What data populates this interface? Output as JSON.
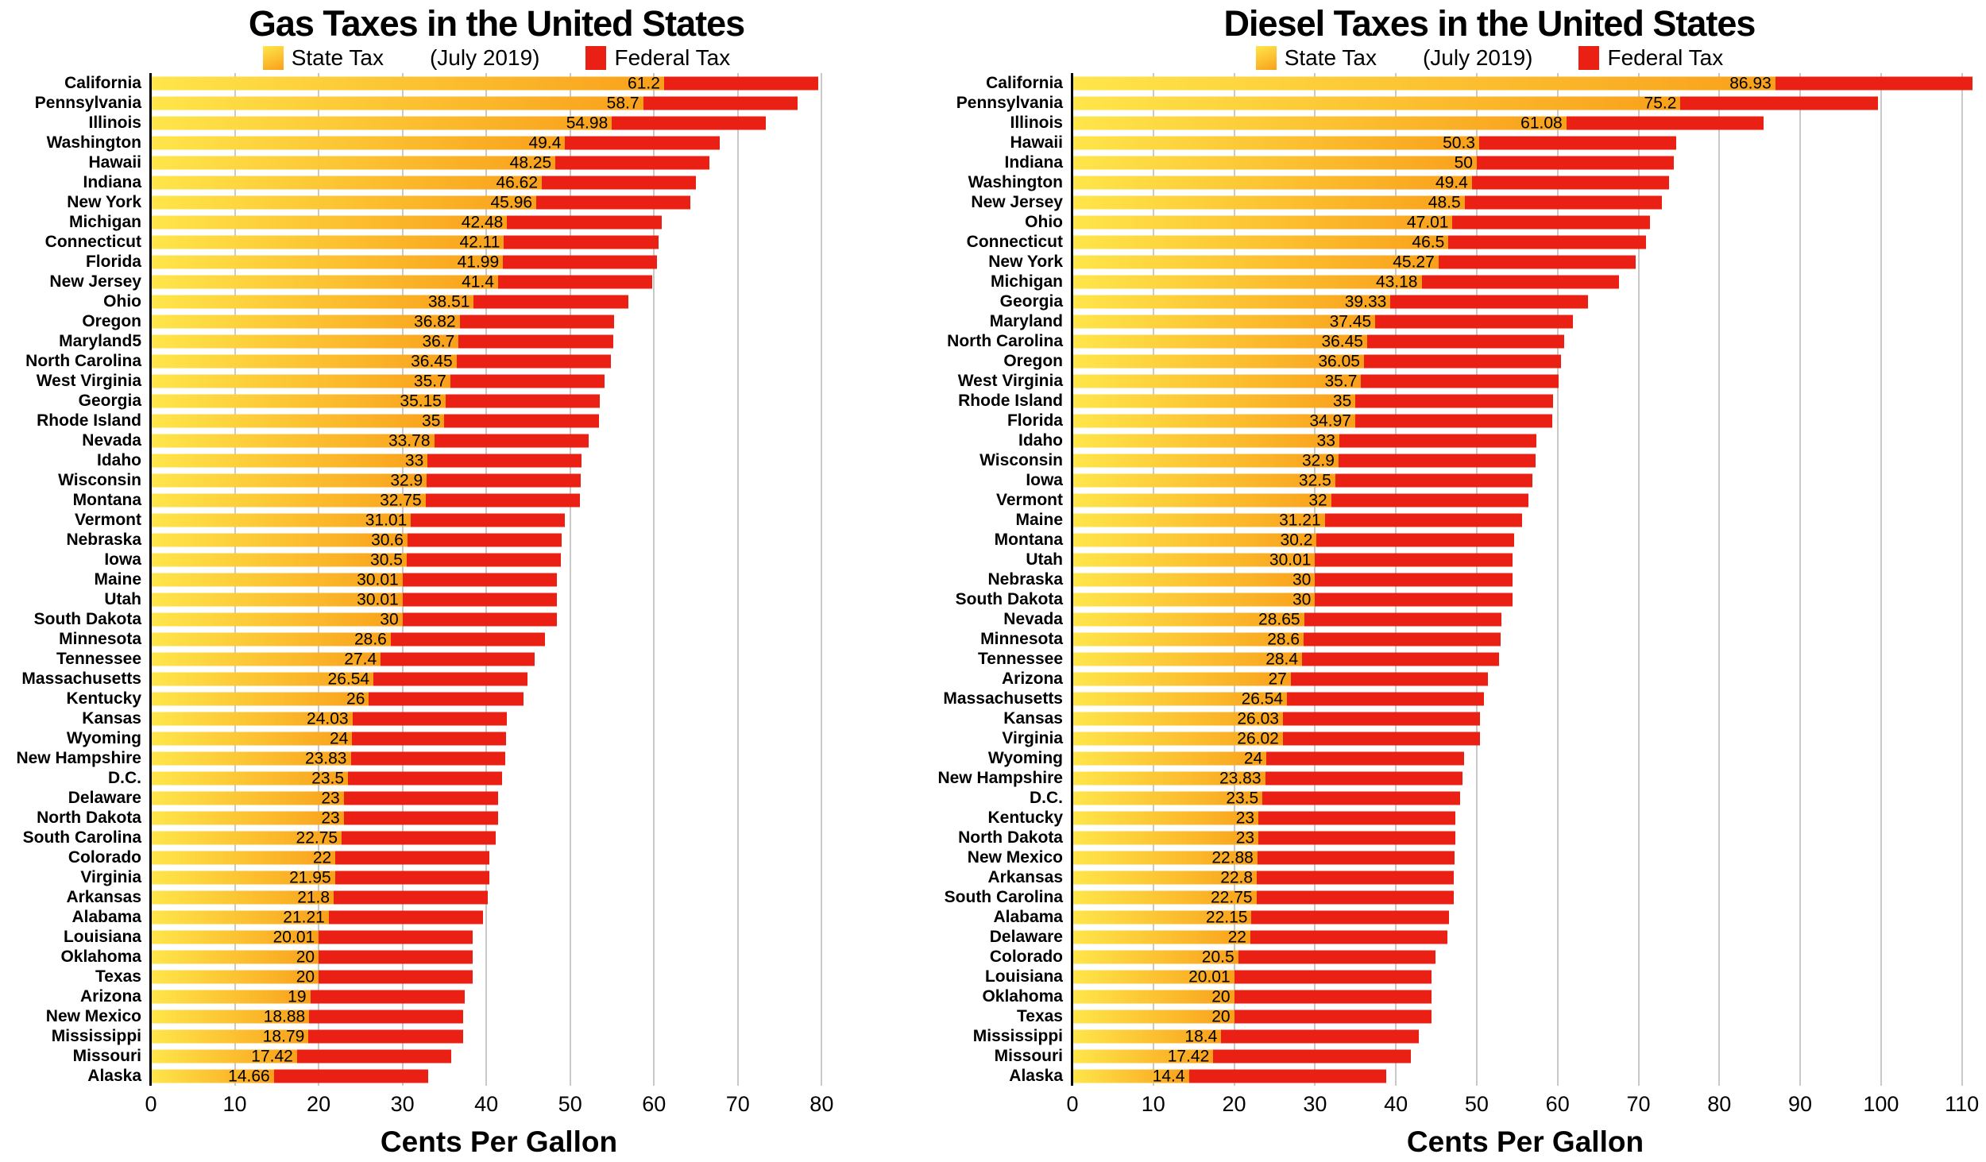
{
  "colors": {
    "state_tax_gradient_start": "#FFE64A",
    "state_tax_gradient_end": "#F9A01B",
    "federal_tax": "#EB2014",
    "gridline": "#C9C9C9",
    "axis": "#000000",
    "text": "#000000",
    "background": "#FFFFFF"
  },
  "chart_data": [
    {
      "type": "bar",
      "orientation": "horizontal",
      "title": "Gas Taxes in the United States",
      "subtitle": "(July 2019)",
      "legend_position": "top",
      "xlabel": "Cents Per Gallon",
      "xlim": [
        0,
        83
      ],
      "xticks": [
        0,
        10,
        20,
        30,
        40,
        50,
        60,
        70,
        80
      ],
      "grid": true,
      "categories": [
        "California",
        "Pennsylvania",
        "Illinois",
        "Washington",
        "Hawaii",
        "Indiana",
        "New York",
        "Michigan",
        "Connecticut",
        "Florida",
        "New Jersey",
        "Ohio",
        "Oregon",
        "Maryland5",
        "North Carolina",
        "West Virginia",
        "Georgia",
        "Rhode Island",
        "Nevada",
        "Idaho",
        "Wisconsin",
        "Montana",
        "Vermont",
        "Nebraska",
        "Iowa",
        "Maine",
        "Utah",
        "South Dakota",
        "Minnesota",
        "Tennessee",
        "Massachusetts",
        "Kentucky",
        "Kansas",
        "Wyoming",
        "New Hampshire",
        "D.C.",
        "Delaware",
        "North Dakota",
        "South Carolina",
        "Colorado",
        "Virginia",
        "Arkansas",
        "Alabama",
        "Louisiana",
        "Oklahoma",
        "Texas",
        "Arizona",
        "New Mexico",
        "Mississippi",
        "Missouri",
        "Alaska"
      ],
      "series": [
        {
          "name": "State Tax",
          "values": [
            61.2,
            58.7,
            54.98,
            49.4,
            48.25,
            46.62,
            45.96,
            42.48,
            42.11,
            41.99,
            41.4,
            38.51,
            36.82,
            36.7,
            36.45,
            35.7,
            35.15,
            35,
            33.78,
            33,
            32.9,
            32.75,
            31.01,
            30.6,
            30.5,
            30.01,
            30.01,
            30,
            28.6,
            27.4,
            26.54,
            26,
            24.03,
            24,
            23.83,
            23.5,
            23,
            23,
            22.75,
            22,
            21.95,
            21.8,
            21.21,
            20.01,
            20,
            20,
            19,
            18.88,
            18.79,
            17.42,
            14.66
          ]
        },
        {
          "name": "Federal Tax",
          "constant_value": 18.4
        }
      ]
    },
    {
      "type": "bar",
      "orientation": "horizontal",
      "title": "Diesel Taxes in the United States",
      "subtitle": "(July 2019)",
      "legend_position": "top",
      "xlabel": "Cents Per Gallon",
      "xlim": [
        0,
        112
      ],
      "xticks": [
        0,
        10,
        20,
        30,
        40,
        50,
        60,
        70,
        80,
        90,
        100,
        110
      ],
      "grid": true,
      "categories": [
        "California",
        "Pennsylvania",
        "Illinois",
        "Hawaii",
        "Indiana",
        "Washington",
        "New Jersey",
        "Ohio",
        "Connecticut",
        "New York",
        "Michigan",
        "Georgia",
        "Maryland",
        "North Carolina",
        "Oregon",
        "West Virginia",
        "Rhode Island",
        "Florida",
        "Idaho",
        "Wisconsin",
        "Iowa",
        "Vermont",
        "Maine",
        "Montana",
        "Utah",
        "Nebraska",
        "South Dakota",
        "Nevada",
        "Minnesota",
        "Tennessee",
        "Arizona",
        "Massachusetts",
        "Kansas",
        "Virginia",
        "Wyoming",
        "New Hampshire",
        "D.C.",
        "Kentucky",
        "North Dakota",
        "New Mexico",
        "Arkansas",
        "South Carolina",
        "Alabama",
        "Delaware",
        "Colorado",
        "Louisiana",
        "Oklahoma",
        "Texas",
        "Mississippi",
        "Missouri",
        "Alaska"
      ],
      "series": [
        {
          "name": "State Tax",
          "values": [
            86.93,
            75.2,
            61.08,
            50.3,
            50,
            49.4,
            48.5,
            47.01,
            46.5,
            45.27,
            43.18,
            39.33,
            37.45,
            36.45,
            36.05,
            35.7,
            35,
            34.97,
            33,
            32.9,
            32.5,
            32,
            31.21,
            30.2,
            30.01,
            30,
            30,
            28.65,
            28.6,
            28.4,
            27,
            26.54,
            26.03,
            26.02,
            24,
            23.83,
            23.5,
            23,
            23,
            22.88,
            22.8,
            22.75,
            22.15,
            22,
            20.5,
            20.01,
            20,
            20,
            18.4,
            17.42,
            14.4
          ]
        },
        {
          "name": "Federal Tax",
          "constant_value": 24.4
        }
      ]
    }
  ]
}
